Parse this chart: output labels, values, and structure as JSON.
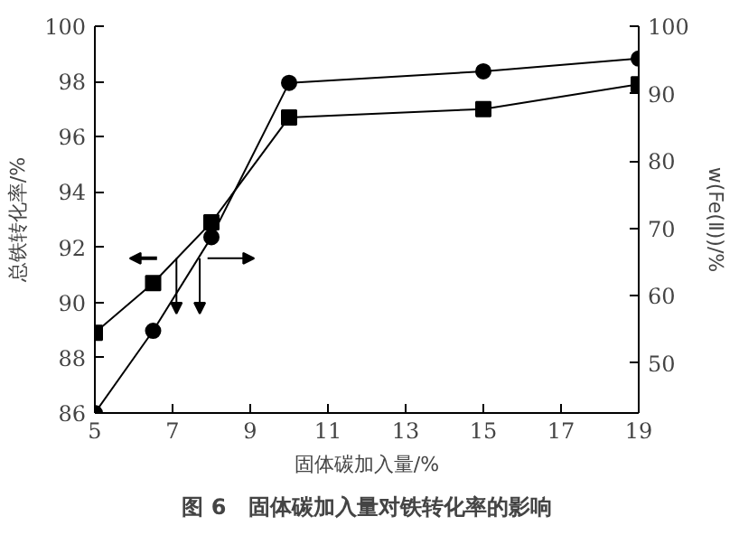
{
  "chart_data": {
    "type": "line",
    "title": "图 6　固体碳加入量对铁转化率的影响",
    "xlabel": "固体碳加入量/%",
    "ylabel": "总铁转化率/%",
    "y2label": "w(Fe(Ⅱ))/%",
    "x": [
      5,
      6.5,
      8,
      10,
      15,
      19
    ],
    "series": [
      {
        "color": "#000000",
        "marker": "square",
        "values": [
          88.9,
          90.7,
          92.9,
          96.7,
          97.0,
          97.9
        ]
      },
      {
        "color": "#000000",
        "marker": "circle",
        "axis": "y2",
        "values": [
          42.6,
          54.8,
          68.7,
          91.6,
          93.3,
          95.2
        ]
      }
    ],
    "xlim": [
      5,
      19
    ],
    "xticks": [
      5,
      7,
      9,
      11,
      13,
      15,
      17,
      19
    ],
    "ylim": [
      86,
      100
    ],
    "yticks": [
      86,
      88,
      90,
      92,
      94,
      96,
      98,
      100
    ],
    "y2lim": [
      42.6,
      100
    ],
    "y2ticks": [
      50,
      60,
      70,
      80,
      90,
      100
    ],
    "grid": false
  }
}
